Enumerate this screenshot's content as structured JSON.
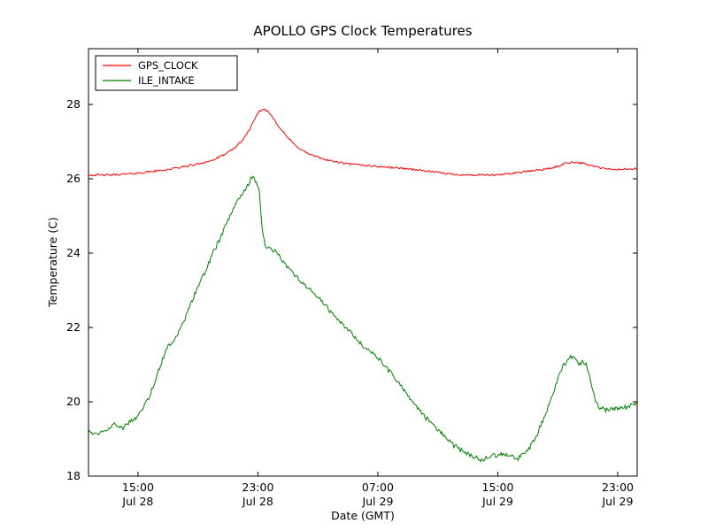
{
  "chart_data": {
    "type": "line",
    "title": "APOLLO GPS Clock Temperatures",
    "xlabel": "Date (GMT)",
    "ylabel": "Temperature (C)",
    "x_unit": "hours since Jul 28 00:00 GMT",
    "xlim": [
      11.7,
      48.3
    ],
    "ylim": [
      18,
      29.5
    ],
    "yticks": [
      18,
      20,
      22,
      24,
      26,
      28
    ],
    "xticks": [
      {
        "x": 15,
        "time": "15:00",
        "date": "Jul 28"
      },
      {
        "x": 23,
        "time": "23:00",
        "date": "Jul 28"
      },
      {
        "x": 31,
        "time": "07:00",
        "date": "Jul 29"
      },
      {
        "x": 39,
        "time": "15:00",
        "date": "Jul 29"
      },
      {
        "x": 47,
        "time": "23:00",
        "date": "Jul 29"
      }
    ],
    "grid": false,
    "legend_position": "upper left",
    "series": [
      {
        "name": "GPS_CLOCK",
        "color": "#ff0000",
        "noise": 0.025,
        "points": [
          [
            11.7,
            26.1
          ],
          [
            13,
            26.1
          ],
          [
            14,
            26.12
          ],
          [
            15,
            26.15
          ],
          [
            16,
            26.2
          ],
          [
            17,
            26.25
          ],
          [
            18,
            26.32
          ],
          [
            19,
            26.4
          ],
          [
            20,
            26.5
          ],
          [
            20.5,
            26.6
          ],
          [
            21,
            26.7
          ],
          [
            21.5,
            26.85
          ],
          [
            22,
            27.05
          ],
          [
            22.4,
            27.3
          ],
          [
            22.8,
            27.6
          ],
          [
            23.1,
            27.82
          ],
          [
            23.4,
            27.88
          ],
          [
            23.7,
            27.8
          ],
          [
            24,
            27.65
          ],
          [
            24.5,
            27.35
          ],
          [
            25,
            27.1
          ],
          [
            25.5,
            26.9
          ],
          [
            26,
            26.75
          ],
          [
            26.5,
            26.65
          ],
          [
            27,
            26.58
          ],
          [
            27.5,
            26.52
          ],
          [
            28,
            26.47
          ],
          [
            29,
            26.4
          ],
          [
            30,
            26.37
          ],
          [
            31,
            26.33
          ],
          [
            32,
            26.3
          ],
          [
            33,
            26.27
          ],
          [
            34,
            26.22
          ],
          [
            35,
            26.17
          ],
          [
            36,
            26.12
          ],
          [
            37,
            26.1
          ],
          [
            38,
            26.1
          ],
          [
            39,
            26.1
          ],
          [
            40,
            26.15
          ],
          [
            41,
            26.2
          ],
          [
            42,
            26.25
          ],
          [
            42.5,
            26.28
          ],
          [
            43,
            26.33
          ],
          [
            43.5,
            26.42
          ],
          [
            44,
            26.45
          ],
          [
            44.5,
            26.43
          ],
          [
            45,
            26.38
          ],
          [
            45.5,
            26.33
          ],
          [
            46,
            26.28
          ],
          [
            46.5,
            26.25
          ],
          [
            47,
            26.25
          ],
          [
            48.3,
            26.27
          ]
        ]
      },
      {
        "name": "ILE_INTAKE",
        "color": "#008000",
        "noise": 0.06,
        "points": [
          [
            11.7,
            19.2
          ],
          [
            12.3,
            19.15
          ],
          [
            13,
            19.3
          ],
          [
            13.5,
            19.4
          ],
          [
            14,
            19.3
          ],
          [
            14.5,
            19.5
          ],
          [
            15,
            19.6
          ],
          [
            15.3,
            19.8
          ],
          [
            15.7,
            20.1
          ],
          [
            16,
            20.4
          ],
          [
            16.5,
            21.0
          ],
          [
            17,
            21.5
          ],
          [
            17.3,
            21.6
          ],
          [
            17.6,
            21.8
          ],
          [
            18,
            22.1
          ],
          [
            18.5,
            22.6
          ],
          [
            19,
            23.1
          ],
          [
            19.5,
            23.5
          ],
          [
            20,
            24.0
          ],
          [
            20.5,
            24.4
          ],
          [
            21,
            24.9
          ],
          [
            21.5,
            25.3
          ],
          [
            22,
            25.6
          ],
          [
            22.3,
            25.8
          ],
          [
            22.6,
            26.05
          ],
          [
            22.9,
            25.9
          ],
          [
            23.1,
            25.6
          ],
          [
            23.3,
            24.6
          ],
          [
            23.5,
            24.2
          ],
          [
            23.8,
            24.1
          ],
          [
            24.2,
            24.05
          ],
          [
            24.5,
            23.9
          ],
          [
            25,
            23.6
          ],
          [
            25.5,
            23.4
          ],
          [
            26,
            23.2
          ],
          [
            26.5,
            23.0
          ],
          [
            27,
            22.8
          ],
          [
            27.5,
            22.6
          ],
          [
            28,
            22.35
          ],
          [
            28.5,
            22.15
          ],
          [
            29,
            21.95
          ],
          [
            29.5,
            21.7
          ],
          [
            30,
            21.5
          ],
          [
            30.5,
            21.35
          ],
          [
            31,
            21.2
          ],
          [
            31.5,
            20.95
          ],
          [
            32,
            20.7
          ],
          [
            32.5,
            20.45
          ],
          [
            33,
            20.15
          ],
          [
            33.5,
            19.9
          ],
          [
            34,
            19.65
          ],
          [
            34.5,
            19.45
          ],
          [
            35,
            19.25
          ],
          [
            35.5,
            19.05
          ],
          [
            36,
            18.85
          ],
          [
            36.5,
            18.7
          ],
          [
            37,
            18.6
          ],
          [
            37.5,
            18.5
          ],
          [
            38,
            18.42
          ],
          [
            38.5,
            18.55
          ],
          [
            39,
            18.55
          ],
          [
            39.5,
            18.6
          ],
          [
            40,
            18.55
          ],
          [
            40.3,
            18.45
          ],
          [
            40.7,
            18.6
          ],
          [
            41,
            18.7
          ],
          [
            41.5,
            19.0
          ],
          [
            42,
            19.5
          ],
          [
            42.5,
            20.0
          ],
          [
            43,
            20.6
          ],
          [
            43.4,
            21.0
          ],
          [
            43.8,
            21.2
          ],
          [
            44.2,
            21.15
          ],
          [
            44.4,
            20.95
          ],
          [
            44.6,
            21.1
          ],
          [
            44.9,
            21.0
          ],
          [
            45.2,
            20.5
          ],
          [
            45.5,
            20.05
          ],
          [
            45.8,
            19.85
          ],
          [
            46.2,
            19.78
          ],
          [
            46.6,
            19.8
          ],
          [
            47,
            19.8
          ],
          [
            47.5,
            19.85
          ],
          [
            48.3,
            19.95
          ]
        ]
      }
    ]
  }
}
